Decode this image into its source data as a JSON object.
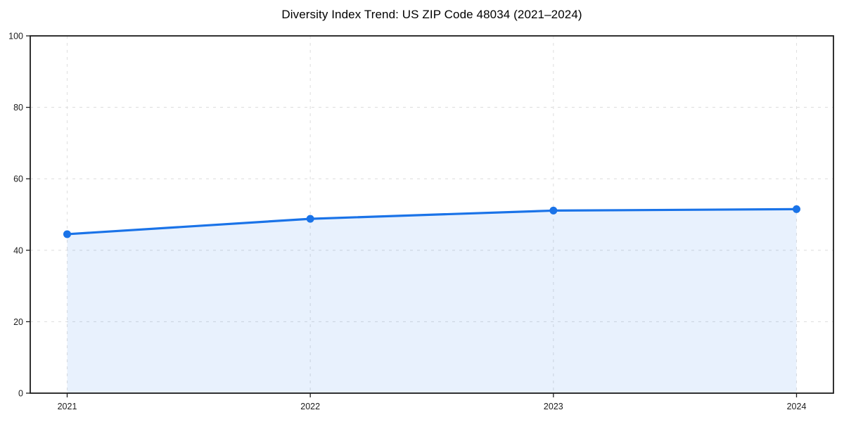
{
  "chart_data": {
    "type": "area",
    "title": "Diversity Index Trend: US ZIP Code 48034 (2021–2024)",
    "x": [
      2021,
      2022,
      2023,
      2024
    ],
    "x_tick_labels": [
      "2021",
      "2022",
      "2023",
      "2024"
    ],
    "series": [
      {
        "name": "Diversity Index",
        "values": [
          44.5,
          48.8,
          51.1,
          51.5
        ]
      }
    ],
    "xlabel": "",
    "ylabel": "",
    "ylim": [
      0,
      100
    ],
    "yticks": [
      0,
      20,
      40,
      60,
      80,
      100
    ],
    "grid": true,
    "grid_style": "dashed",
    "legend_position": "none",
    "colors": {
      "line": "#1a73e8",
      "fill": "rgba(26,115,232,0.10)",
      "marker": "#1a73e8",
      "grid": "#e0e0e0",
      "spine": "#1c1c1c",
      "tick_label": "#1c1c1c",
      "title": "#000000"
    },
    "marker": "circle"
  }
}
